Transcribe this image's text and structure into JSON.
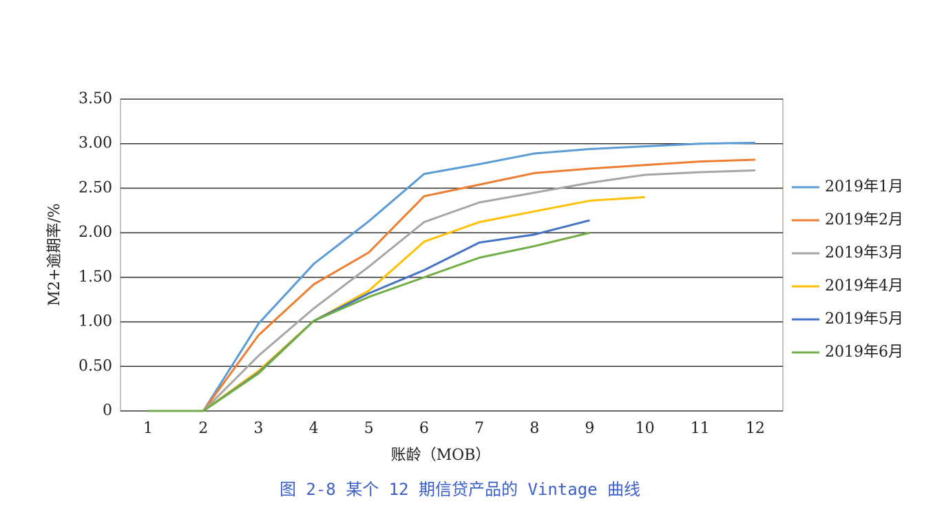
{
  "chart_data": {
    "type": "line",
    "caption": "图 2-8  某个 12 期信贷产品的 Vintage 曲线",
    "xlabel": "账龄（MOB）",
    "ylabel": "M2+逾期率/%",
    "categories": [
      "1",
      "2",
      "3",
      "4",
      "5",
      "6",
      "7",
      "8",
      "9",
      "10",
      "11",
      "12"
    ],
    "ylim": [
      0,
      3.5
    ],
    "yticks": [
      0,
      {
        "value": 0.5,
        "label": "0.50"
      },
      {
        "value": 1,
        "label": "1.00"
      },
      {
        "value": 1.5,
        "label": "1.50"
      },
      {
        "value": 2,
        "label": "2.00"
      },
      {
        "value": 2.5,
        "label": "2.50"
      },
      {
        "value": 3,
        "label": "3.00"
      },
      {
        "value": 3.5,
        "label": "3.50"
      }
    ],
    "grid": true,
    "legend": "right",
    "series": [
      {
        "name": "2019年1月",
        "color": "#5b9bd5",
        "values": [
          0,
          0,
          0.98,
          1.65,
          2.13,
          2.66,
          2.77,
          2.89,
          2.94,
          2.97,
          3.0,
          3.01
        ]
      },
      {
        "name": "2019年2月",
        "color": "#ed7d31",
        "values": [
          0,
          0,
          0.85,
          1.42,
          1.78,
          2.41,
          2.54,
          2.67,
          2.72,
          2.76,
          2.8,
          2.82
        ]
      },
      {
        "name": "2019年3月",
        "color": "#a5a5a5",
        "values": [
          0,
          0,
          0.62,
          1.15,
          1.62,
          2.12,
          2.34,
          2.45,
          2.56,
          2.65,
          2.68,
          2.7
        ]
      },
      {
        "name": "2019年4月",
        "color": "#ffc000",
        "values": [
          0,
          0,
          0.45,
          1.01,
          1.35,
          1.9,
          2.12,
          2.24,
          2.36,
          2.4,
          null,
          null
        ]
      },
      {
        "name": "2019年5月",
        "color": "#4472c4",
        "values": [
          0,
          0,
          0.43,
          1.01,
          1.32,
          1.58,
          1.89,
          1.98,
          2.14,
          null,
          null,
          null
        ]
      },
      {
        "name": "2019年6月",
        "color": "#70ad47",
        "values": [
          0,
          0,
          0.42,
          1.01,
          1.28,
          1.5,
          1.72,
          1.85,
          2.0,
          null,
          null,
          null
        ]
      }
    ]
  }
}
